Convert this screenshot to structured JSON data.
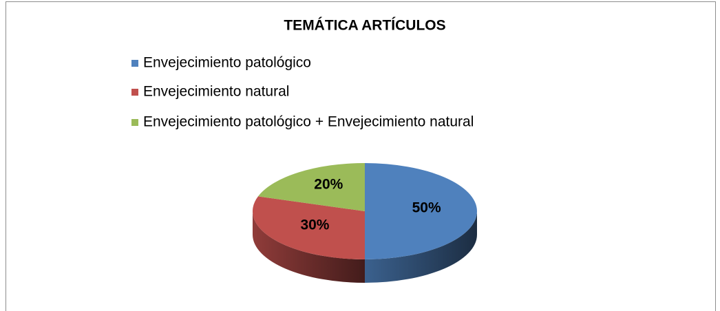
{
  "chart_data": {
    "type": "pie",
    "title": "TEMÁTICA ARTÍCULOS",
    "categories": [
      "Envejecimiento patológico",
      "Envejecimiento natural",
      "Envejecimiento patológico + Envejecimiento natural"
    ],
    "values": [
      50,
      30,
      20
    ],
    "value_labels": [
      "50%",
      "30%",
      "20%"
    ],
    "colors": [
      "#4f81bd",
      "#c0504d",
      "#9bbb59"
    ],
    "legend": "top"
  }
}
